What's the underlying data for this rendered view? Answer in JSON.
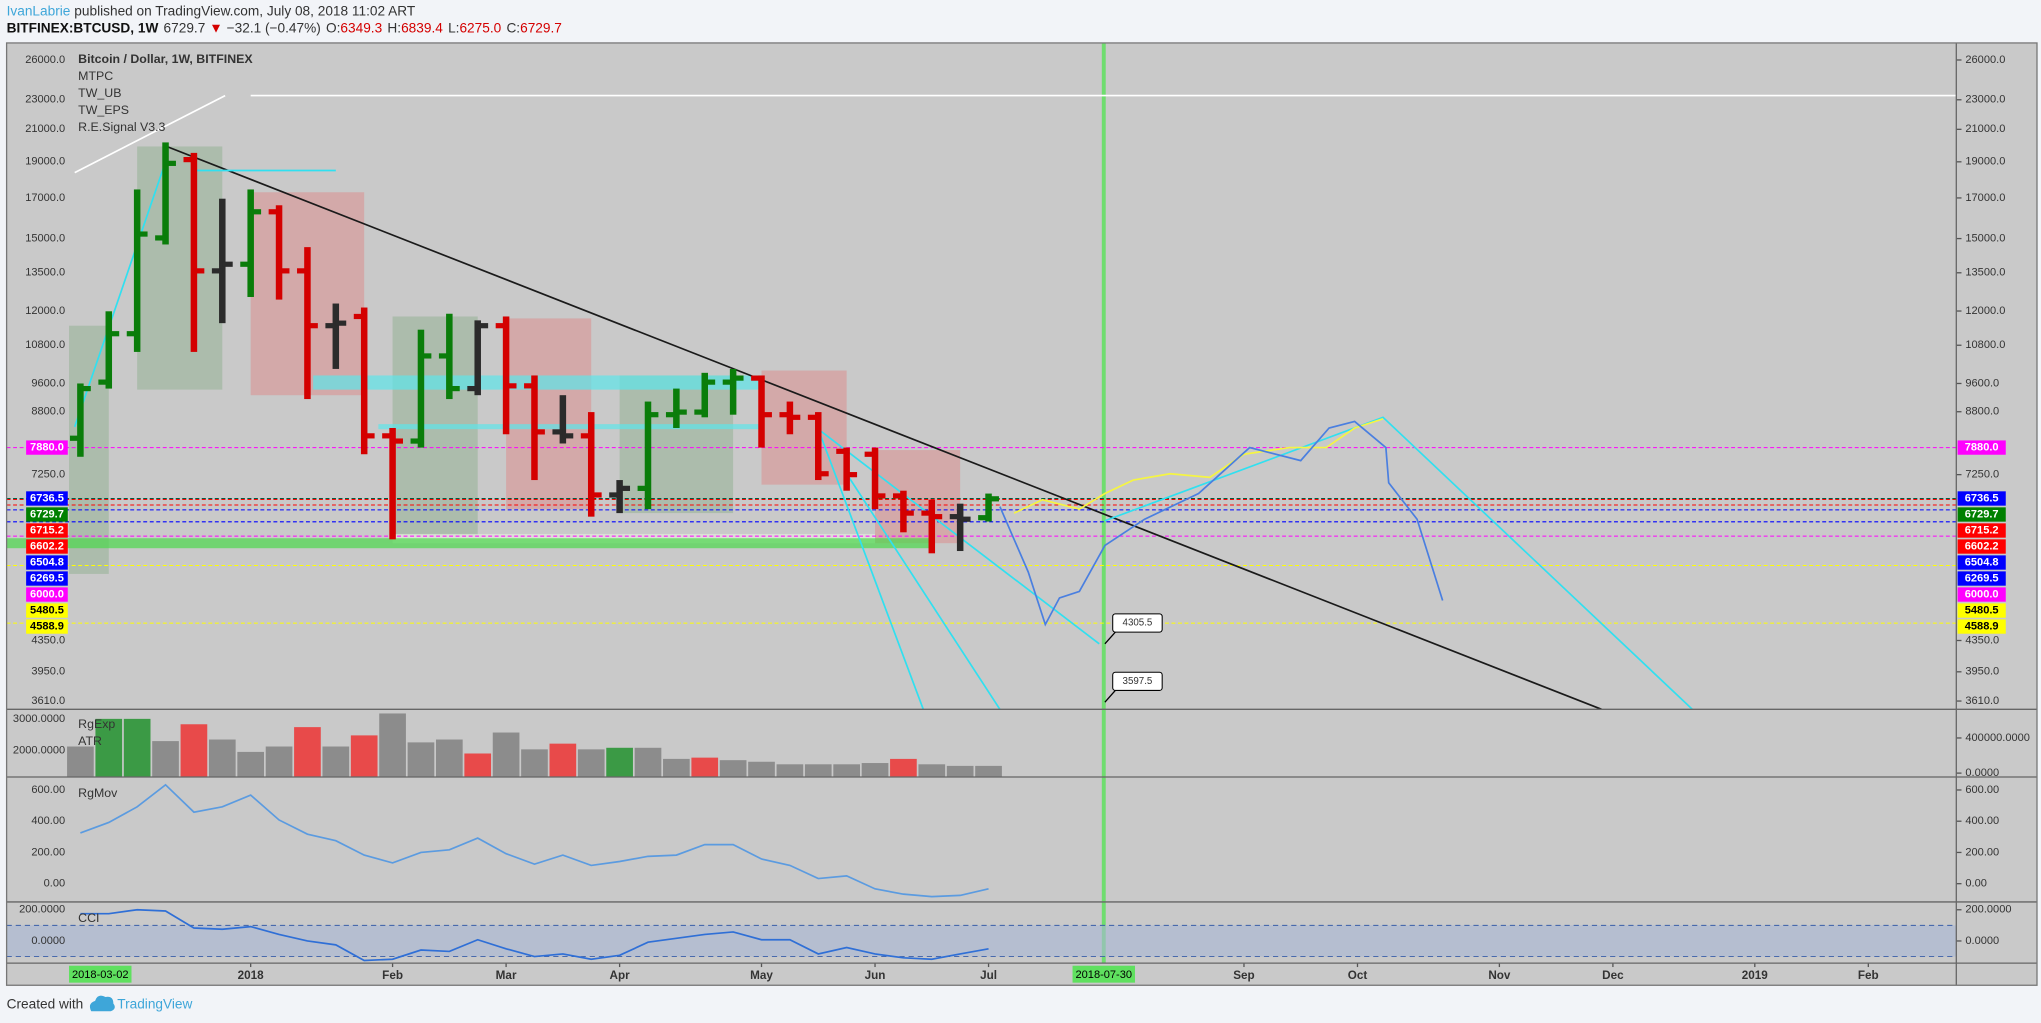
{
  "header": {
    "author": "IvanLabrie",
    "published": "published on TradingView.com, July 08, 2018 11:02 ART",
    "symbol": "BITFINEX:BTCUSD, 1W",
    "last": "6729.7",
    "change_symbol": "▼",
    "change": "−32.1 (−0.47%)",
    "ohlc": [
      {
        "key": "O:",
        "value": "6349.3"
      },
      {
        "key": "H:",
        "value": "6839.4"
      },
      {
        "key": "L:",
        "value": "6275.0"
      },
      {
        "key": "C:",
        "value": "6729.7"
      }
    ]
  },
  "chart_data": [
    {
      "type": "ohlc",
      "log": true,
      "legend": [
        "Bitcoin / Dollar, 1W, BITFINEX",
        "MTPC",
        "TW_UB",
        "TW_EPS",
        "R.E.Signal V3.3"
      ],
      "categories": [
        null,
        null,
        null,
        null,
        null,
        null,
        null,
        null,
        null,
        null,
        null,
        null,
        null,
        null,
        null,
        null,
        null,
        null,
        null,
        null,
        null,
        null,
        null,
        null,
        null,
        null,
        null,
        null,
        null,
        null,
        null,
        null,
        null
      ],
      "open": [
        8110,
        9640,
        11190,
        15030,
        19130,
        13580,
        13860,
        16290,
        13580,
        11470,
        11800,
        8170,
        8040,
        10450,
        9450,
        11470,
        9530,
        8270,
        8170,
        6810,
        6950,
        8720,
        8790,
        9640,
        9760,
        8720,
        8650,
        7790,
        7720,
        6790,
        6440,
        6370,
        6349.3
      ],
      "high": [
        9600,
        11990,
        17450,
        20170,
        19530,
        16960,
        17450,
        16620,
        14610,
        12280,
        12130,
        8370,
        11330,
        11900,
        11660,
        11800,
        9840,
        9260,
        8790,
        7130,
        9080,
        9450,
        9920,
        10040,
        9840,
        9080,
        8790,
        7880,
        7880,
        6900,
        6710,
        6630,
        6839.4
      ],
      "low": [
        7660,
        9450,
        10580,
        14730,
        10580,
        11560,
        12530,
        12430,
        9150,
        10040,
        7720,
        5940,
        7880,
        9150,
        9260,
        8210,
        7130,
        7980,
        6370,
        6440,
        6520,
        8370,
        8650,
        8720,
        7880,
        8210,
        7130,
        6900,
        6520,
        6070,
        5690,
        5730,
        6275.0
      ],
      "close": [
        9450,
        11190,
        15210,
        18910,
        13580,
        13860,
        16290,
        13580,
        11470,
        11560,
        8170,
        8040,
        10450,
        9450,
        11470,
        9530,
        8270,
        8170,
        6810,
        6950,
        8720,
        8790,
        9640,
        9760,
        8720,
        8650,
        7270,
        7250,
        6790,
        6440,
        6370,
        6320,
        6729.7
      ],
      "colors": [
        "#0a7d0a",
        "#0a7d0a",
        "#0a7d0a",
        "#0a7d0a",
        "#d40000",
        "#2b2b2b",
        "#0a7d0a",
        "#d40000",
        "#d40000",
        "#2b2b2b",
        "#d40000",
        "#d40000",
        "#0a7d0a",
        "#0a7d0a",
        "#2b2b2b",
        "#d40000",
        "#d40000",
        "#2b2b2b",
        "#d40000",
        "#2b2b2b",
        "#0a7d0a",
        "#0a7d0a",
        "#0a7d0a",
        "#0a7d0a",
        "#d40000",
        "#d40000",
        "#d40000",
        "#d40000",
        "#d40000",
        "#d40000",
        "#d40000",
        "#2b2b2b",
        "#0a7d0a"
      ],
      "ylim": [
        3519,
        27400
      ],
      "yticks": [
        {
          "value": 26000,
          "label": "26000.0"
        },
        {
          "value": 23000,
          "label": "23000.0"
        },
        {
          "value": 21000,
          "label": "21000.0"
        },
        {
          "value": 19000,
          "label": "19000.0"
        },
        {
          "value": 17000,
          "label": "17000.0"
        },
        {
          "value": 15000,
          "label": "15000.0"
        },
        {
          "value": 13500,
          "label": "13500.0"
        },
        {
          "value": 12000,
          "label": "12000.0"
        },
        {
          "value": 10800,
          "label": "10800.0"
        },
        {
          "value": 9600,
          "label": "9600.0"
        },
        {
          "value": 8800,
          "label": "8800.0"
        },
        {
          "value": 7250,
          "label": "7250.0"
        },
        {
          "value": 4350,
          "label": "4350.0"
        },
        {
          "value": 3950,
          "label": "3950.0"
        },
        {
          "value": 3610,
          "label": "3610.0"
        }
      ],
      "xlim": [
        -2.6,
        66.1
      ],
      "xticks": [
        {
          "value": 6,
          "label": "2018"
        },
        {
          "value": 11,
          "label": "Feb"
        },
        {
          "value": 15,
          "label": "Mar"
        },
        {
          "value": 19,
          "label": "Apr"
        },
        {
          "value": 24,
          "label": "May"
        },
        {
          "value": 28,
          "label": "Jun"
        },
        {
          "value": 32,
          "label": "Jul"
        },
        {
          "value": 41,
          "label": "Sep"
        },
        {
          "value": 45,
          "label": "Oct"
        },
        {
          "value": 50,
          "label": "Nov"
        },
        {
          "value": 54,
          "label": "Dec"
        },
        {
          "value": 59,
          "label": "2019"
        },
        {
          "value": 63,
          "label": "Feb"
        }
      ],
      "price_labels": [
        {
          "value": 7880,
          "label": "7880.0",
          "color": "#ff00ff"
        },
        {
          "value": 6736.5,
          "label": "6736.5",
          "color": "#0000ff"
        },
        {
          "value": 6729.7,
          "label": "6729.7",
          "color": "#008000"
        },
        {
          "value": 6715.2,
          "label": "6715.2",
          "color": "#ff0000"
        },
        {
          "value": 6602.2,
          "label": "6602.2",
          "color": "#ff0000"
        },
        {
          "value": 6504.8,
          "label": "6504.8",
          "color": "#0000ff"
        },
        {
          "value": 6269.5,
          "label": "6269.5",
          "color": "#0000ff"
        },
        {
          "value": 6000,
          "label": "6000.0",
          "color": "#ff00ff"
        },
        {
          "value": 5480.5,
          "label": "5480.5",
          "color": "#ffff00"
        },
        {
          "value": 4588.9,
          "label": "4588.9",
          "color": "#ffff00"
        }
      ],
      "zones": [
        {
          "x": [
            -0.4,
            1
          ],
          "y": [
            5340,
            11470
          ],
          "color": "#9fb79f"
        },
        {
          "x": [
            2,
            5
          ],
          "y": [
            9420,
            19920
          ],
          "color": "#9fb79f"
        },
        {
          "x": [
            6,
            10
          ],
          "y": [
            9260,
            17300
          ],
          "color": "#d79b9b"
        },
        {
          "x": [
            11,
            14
          ],
          "y": [
            6020,
            11800
          ],
          "color": "#9fb79f"
        },
        {
          "x": [
            15,
            18
          ],
          "y": [
            6520,
            11730
          ],
          "color": "#d79b9b"
        },
        {
          "x": [
            19,
            23
          ],
          "y": [
            6440,
            9840
          ],
          "color": "#9fb79f"
        },
        {
          "x": [
            24,
            27
          ],
          "y": [
            7030,
            9990
          ],
          "color": "#d79b9b"
        },
        {
          "x": [
            28,
            31
          ],
          "y": [
            5870,
            7820
          ],
          "color": "#d79b9b"
        },
        {
          "x": [
            8.2,
            24
          ],
          "y": [
            9420,
            9840
          ],
          "color": "#5ee6ea"
        },
        {
          "x": [
            10.5,
            24
          ],
          "y": [
            8340,
            8470
          ],
          "color": "#5ee6ea"
        },
        {
          "x": [
            11,
            28
          ],
          "y": [
            5870,
            6040
          ],
          "color": "#e3ebdc"
        },
        {
          "x": [
            -2.6,
            30
          ],
          "y": [
            5780,
            5960
          ],
          "color": "#4cd94c"
        }
      ],
      "drawings": [
        {
          "color": "#1a1a1a",
          "points": [
            [
              3,
              19950
            ],
            [
              53.6,
              3519
            ]
          ]
        },
        {
          "color": "#ffffff",
          "points": [
            [
              6,
              23300
            ],
            [
              66.1,
              23300
            ]
          ]
        },
        {
          "color": "#ffffff",
          "points": [
            [
              -0.2,
              18380
            ],
            [
              5.1,
              23300
            ]
          ]
        },
        {
          "color": "#30e0f0",
          "points": [
            [
              4,
              18500
            ],
            [
              9,
              18500
            ]
          ]
        },
        {
          "color": "#30e0f0",
          "points": [
            [
              -0.2,
              8400
            ],
            [
              3,
              19000
            ]
          ]
        },
        {
          "color": "#30e0f0",
          "points": [
            [
              36.1,
              6290
            ],
            [
              45.9,
              8650
            ],
            [
              56.8,
              3519
            ]
          ]
        },
        {
          "color": "#30e0f0",
          "points": [
            [
              26,
              8340
            ],
            [
              29.7,
              3519
            ]
          ]
        },
        {
          "color": "#30e0f0",
          "points": [
            [
              26,
              8340
            ],
            [
              35.9,
              4305.5
            ]
          ]
        },
        {
          "color": "#30e0f0",
          "points": [
            [
              27,
              7270
            ],
            [
              32.4,
              3519
            ]
          ]
        },
        {
          "color": "#f5f542",
          "points": [
            [
              32.9,
              6440
            ],
            [
              33.9,
              6710
            ],
            [
              35.2,
              6520
            ],
            [
              36.1,
              6840
            ],
            [
              37.1,
              7130
            ],
            [
              38.4,
              7270
            ],
            [
              39.8,
              7190
            ],
            [
              41,
              7720
            ],
            [
              42.6,
              7880
            ],
            [
              43.9,
              7880
            ],
            [
              44.9,
              8370
            ],
            [
              45.9,
              8610
            ]
          ]
        },
        {
          "color": "#4a7fe0",
          "points": [
            [
              32.4,
              6570
            ],
            [
              33.4,
              5370
            ],
            [
              34,
              4570
            ],
            [
              34.5,
              4960
            ],
            [
              35.2,
              5060
            ],
            [
              36.1,
              5830
            ],
            [
              37.5,
              6320
            ],
            [
              39.4,
              6840
            ],
            [
              41.2,
              7880
            ],
            [
              43,
              7570
            ],
            [
              44,
              8370
            ],
            [
              44.9,
              8540
            ],
            [
              46,
              7880
            ],
            [
              46.1,
              7070
            ],
            [
              47.1,
              6320
            ],
            [
              48,
              4920
            ]
          ]
        }
      ],
      "annotations": [
        {
          "x": 36.1,
          "value": 4305.5
        },
        {
          "x": 36.1,
          "value": 3597.5
        }
      ],
      "marker": {
        "x": 36.06,
        "label": "2018-07-30",
        "color": "#5fe05f"
      },
      "date_labels": [
        {
          "x": 0.7,
          "label": "2018-03-02"
        }
      ]
    },
    {
      "type": "bar",
      "legend": [
        "RgExp",
        "ATR"
      ],
      "values": [
        2130,
        3000,
        3000,
        2300,
        2830,
        2350,
        1960,
        2130,
        2740,
        2130,
        2480,
        3170,
        2260,
        2350,
        1910,
        2570,
        2040,
        2220,
        2040,
        2090,
        2090,
        1740,
        1780,
        1700,
        1650,
        1570,
        1570,
        1570,
        1610,
        1740,
        1570,
        1520,
        1520
      ],
      "colors": [
        "#8c8c8c",
        "#3b9a45",
        "#3b9a45",
        "#8c8c8c",
        "#e84a4a",
        "#8c8c8c",
        "#8c8c8c",
        "#8c8c8c",
        "#e84a4a",
        "#8c8c8c",
        "#e84a4a",
        "#8c8c8c",
        "#8c8c8c",
        "#8c8c8c",
        "#e84a4a",
        "#8c8c8c",
        "#8c8c8c",
        "#e84a4a",
        "#8c8c8c",
        "#3b9a45",
        "#8c8c8c",
        "#8c8c8c",
        "#e84a4a",
        "#8c8c8c",
        "#8c8c8c",
        "#8c8c8c",
        "#8c8c8c",
        "#8c8c8c",
        "#8c8c8c",
        "#e84a4a",
        "#8c8c8c",
        "#8c8c8c",
        "#8c8c8c"
      ],
      "ylim": [
        1170,
        3300
      ],
      "yticks": [
        {
          "value": 3000,
          "label": "3000.0000"
        },
        {
          "value": 2000,
          "label": "2000.0000"
        }
      ],
      "y2lim": [
        -44400,
        725900
      ],
      "y2ticks": [
        {
          "value": 400000,
          "label": "400000.0000"
        },
        {
          "value": 0,
          "label": "0.0000"
        }
      ]
    },
    {
      "type": "line",
      "series": [
        {
          "name": "RgMov",
          "color": "#5b9be0",
          "values": [
            325,
            392,
            492,
            633,
            458,
            492,
            567,
            408,
            317,
            275,
            183,
            133,
            200,
            217,
            292,
            192,
            125,
            183,
            117,
            142,
            175,
            183,
            250,
            250,
            158,
            117,
            33,
            50,
            -33,
            -67,
            -83,
            -75,
            -33
          ]
        }
      ],
      "ylim": [
        -117,
        683
      ],
      "yticks": [
        {
          "value": 600,
          "label": "600.00"
        },
        {
          "value": 400,
          "label": "400.00"
        },
        {
          "value": 200,
          "label": "200.00"
        },
        {
          "value": 0,
          "label": "0.00"
        }
      ]
    },
    {
      "type": "line",
      "series": [
        {
          "name": "CCI",
          "color": "#2f6fd6",
          "values": [
            175,
            175,
            200,
            192,
            83,
            75,
            92,
            42,
            0,
            -25,
            -125,
            -117,
            -58,
            -67,
            8,
            -50,
            -100,
            -83,
            -117,
            -92,
            -8,
            17,
            42,
            58,
            8,
            8,
            -83,
            -42,
            -83,
            -108,
            -117,
            -83,
            -50
          ]
        }
      ],
      "band": [
        -100,
        100
      ],
      "ylim": [
        -142,
        250
      ],
      "yticks": [
        {
          "value": 200,
          "label": "200.0000"
        },
        {
          "value": 0,
          "label": "0.0000"
        }
      ]
    }
  ],
  "footer": {
    "created": "Created with",
    "brand": "TradingView"
  }
}
